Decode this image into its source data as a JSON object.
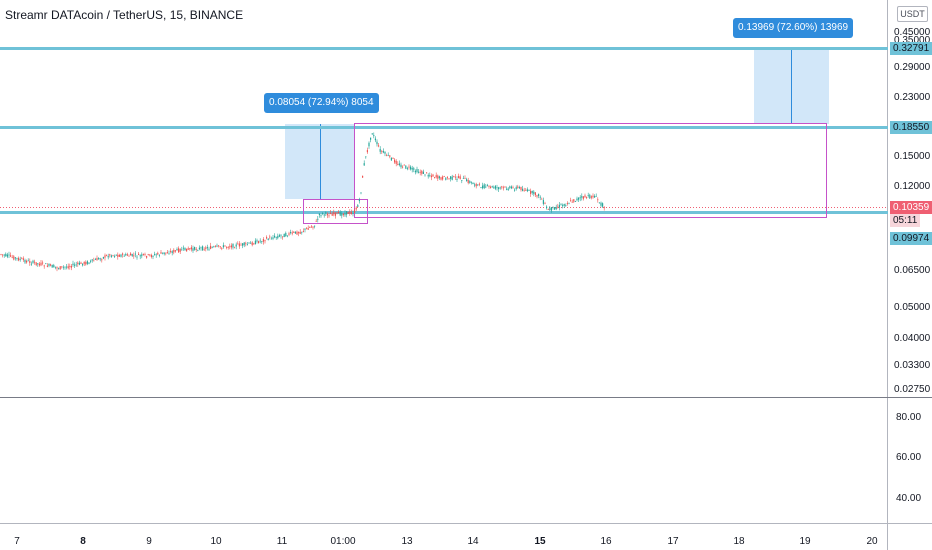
{
  "chart": {
    "title": "Streamr DATAcoin / TetherUS, 15, BINANCE",
    "currency_button": "USDT",
    "price_axis": [
      "0.45000",
      "0.35000",
      "0.29000",
      "0.23000",
      "0.15000",
      "0.12000",
      "0.06500",
      "0.05000",
      "0.04000",
      "0.03300",
      "0.02750"
    ],
    "highlight_levels": [
      {
        "label": "0.32791",
        "value": 0.32791
      },
      {
        "label": "0.18550",
        "value": 0.1855
      },
      {
        "label": "0.09974",
        "value": 0.09974
      }
    ],
    "current_price": {
      "value": "0.10359",
      "countdown": "05:11"
    },
    "measurements": [
      {
        "text": "0.08054 (72.94%) 8054"
      },
      {
        "text": "0.13969 (72.60%) 13969"
      }
    ],
    "time_axis": [
      {
        "label": "7",
        "bold": false
      },
      {
        "label": "8",
        "bold": true
      },
      {
        "label": "9",
        "bold": false
      },
      {
        "label": "10",
        "bold": false
      },
      {
        "label": "11",
        "bold": false
      },
      {
        "label": "01:00",
        "bold": false
      },
      {
        "label": "13",
        "bold": false
      },
      {
        "label": "14",
        "bold": false
      },
      {
        "label": "15",
        "bold": true
      },
      {
        "label": "16",
        "bold": false
      },
      {
        "label": "17",
        "bold": false
      },
      {
        "label": "18",
        "bold": false
      },
      {
        "label": "19",
        "bold": false
      },
      {
        "label": "20",
        "bold": false
      }
    ],
    "oscillator_axis": [
      "80.00",
      "60.00",
      "40.00"
    ],
    "colors": {
      "up": "#26a69a",
      "down": "#ef5350",
      "hline": "#6fc2d8",
      "rect": "#c552c9",
      "measure_fill": "#cde4f8",
      "measure_tag": "#2f8cdc",
      "current_price": "#ef5f72"
    }
  }
}
